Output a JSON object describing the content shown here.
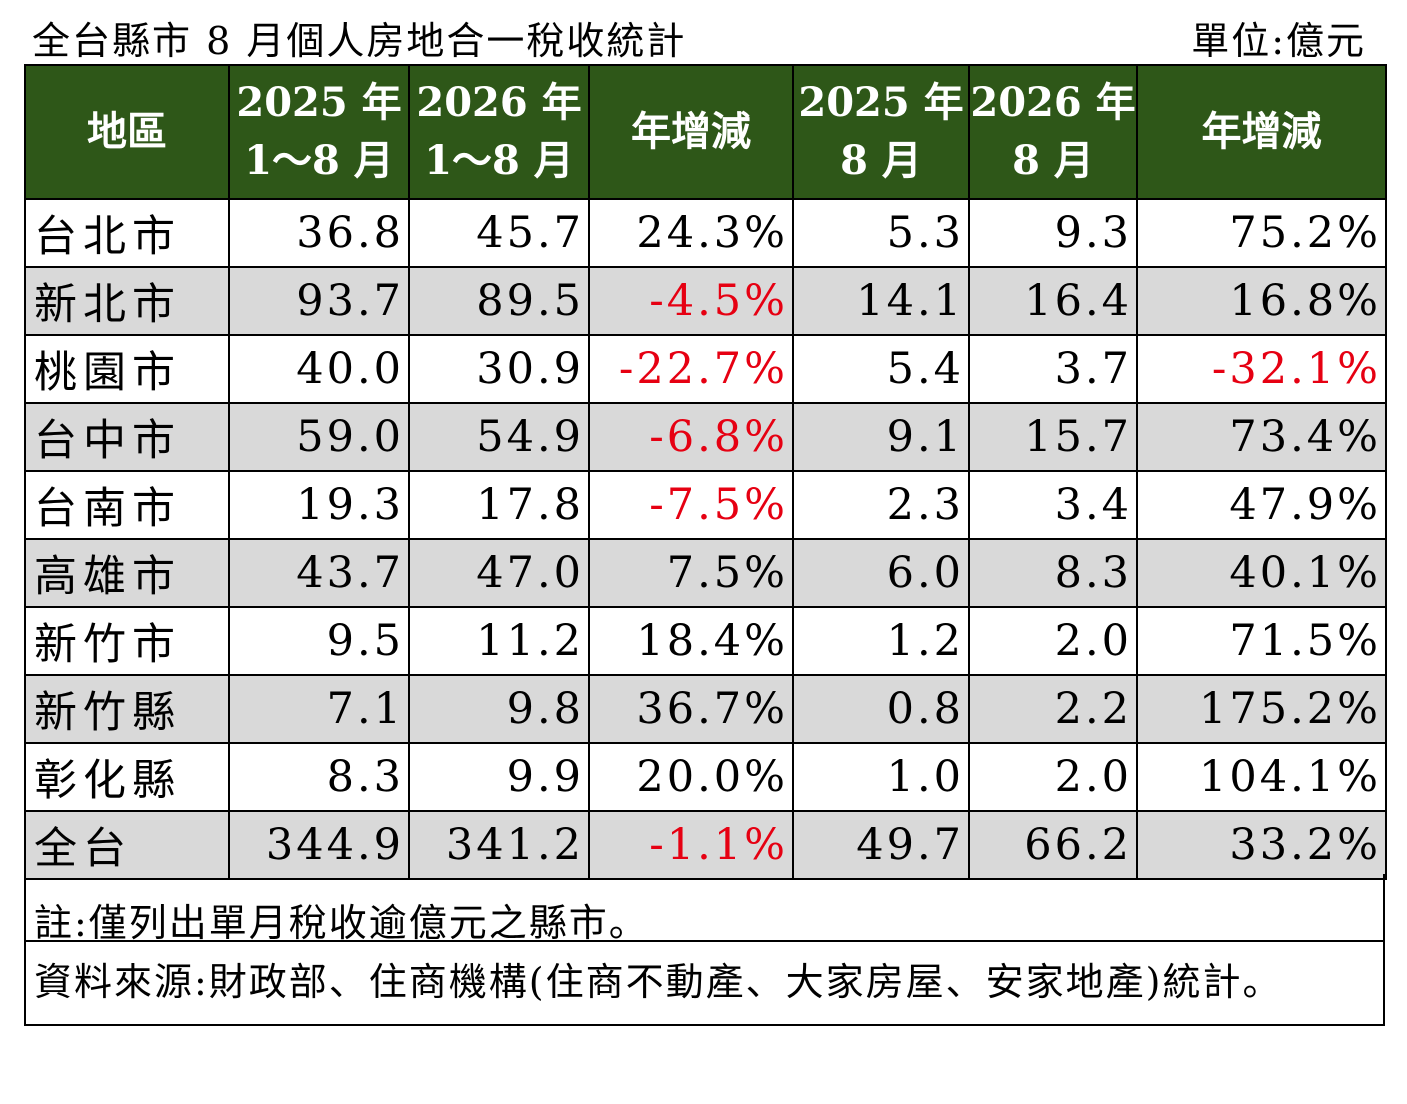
{
  "title": "全台縣市 8 月個人房地合一稅收統計",
  "unit": "單位:億元",
  "headers": {
    "region": "地區",
    "ytd_2025": [
      "2025 年",
      "1～8 月"
    ],
    "ytd_2026": [
      "2026 年",
      "1～8 月"
    ],
    "ytd_change": "年增減",
    "aug_2025": [
      "2025 年",
      "8 月"
    ],
    "aug_2026": [
      "2026 年",
      "8 月"
    ],
    "aug_change": "年增減"
  },
  "rows": [
    {
      "region": "台北市",
      "ytd_2025": "36.8",
      "ytd_2026": "45.7",
      "ytd_change": "24.3%",
      "aug_2025": "5.3",
      "aug_2026": "9.3",
      "aug_change": "75.2%"
    },
    {
      "region": "新北市",
      "ytd_2025": "93.7",
      "ytd_2026": "89.5",
      "ytd_change": "-4.5%",
      "aug_2025": "14.1",
      "aug_2026": "16.4",
      "aug_change": "16.8%"
    },
    {
      "region": "桃園市",
      "ytd_2025": "40.0",
      "ytd_2026": "30.9",
      "ytd_change": "-22.7%",
      "aug_2025": "5.4",
      "aug_2026": "3.7",
      "aug_change": "-32.1%"
    },
    {
      "region": "台中市",
      "ytd_2025": "59.0",
      "ytd_2026": "54.9",
      "ytd_change": "-6.8%",
      "aug_2025": "9.1",
      "aug_2026": "15.7",
      "aug_change": "73.4%"
    },
    {
      "region": "台南市",
      "ytd_2025": "19.3",
      "ytd_2026": "17.8",
      "ytd_change": "-7.5%",
      "aug_2025": "2.3",
      "aug_2026": "3.4",
      "aug_change": "47.9%"
    },
    {
      "region": "高雄市",
      "ytd_2025": "43.7",
      "ytd_2026": "47.0",
      "ytd_change": "7.5%",
      "aug_2025": "6.0",
      "aug_2026": "8.3",
      "aug_change": "40.1%"
    },
    {
      "region": "新竹市",
      "ytd_2025": "9.5",
      "ytd_2026": "11.2",
      "ytd_change": "18.4%",
      "aug_2025": "1.2",
      "aug_2026": "2.0",
      "aug_change": "71.5%"
    },
    {
      "region": "新竹縣",
      "ytd_2025": "7.1",
      "ytd_2026": "9.8",
      "ytd_change": "36.7%",
      "aug_2025": "0.8",
      "aug_2026": "2.2",
      "aug_change": "175.2%"
    },
    {
      "region": "彰化縣",
      "ytd_2025": "8.3",
      "ytd_2026": "9.9",
      "ytd_change": "20.0%",
      "aug_2025": "1.0",
      "aug_2026": "2.0",
      "aug_change": "104.1%"
    },
    {
      "region": "全台",
      "ytd_2025": "344.9",
      "ytd_2026": "341.2",
      "ytd_change": "-1.1%",
      "aug_2025": "49.7",
      "aug_2026": "66.2",
      "aug_change": "33.2%"
    }
  ],
  "note": "註:僅列出單月稅收逾億元之縣市。",
  "source": "資料來源:財政部、住商機構(住商不動產、大家房屋、安家地產)統計。",
  "colors": {
    "header_bg": "#2e5718",
    "alt_row_bg": "#d9d9d9",
    "negative": "#e60012"
  }
}
